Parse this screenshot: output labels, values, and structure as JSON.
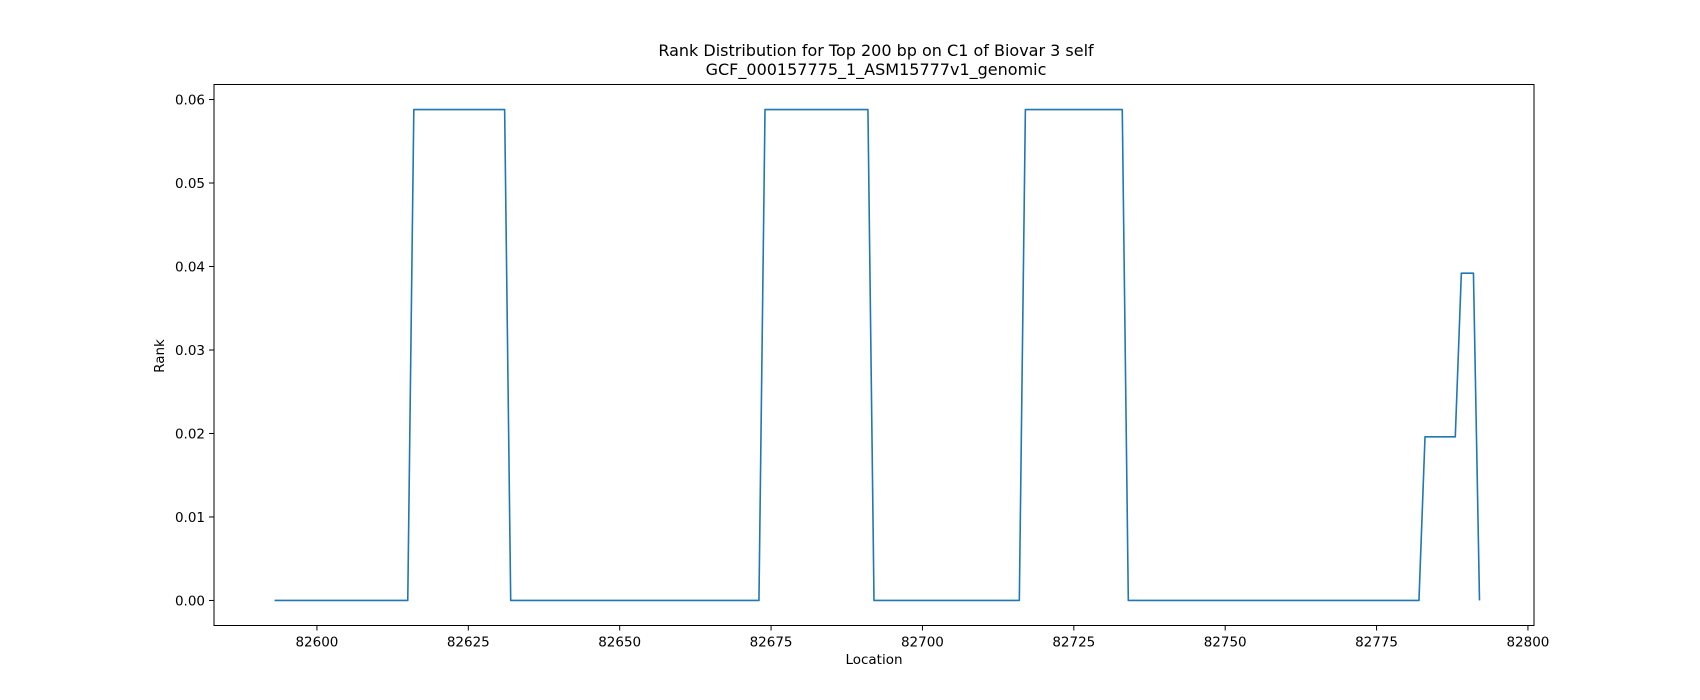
{
  "chart_data": {
    "type": "line",
    "title_line1": "Rank Distribution for Top 200 bp on C1 of Biovar 3 self",
    "title_line2": "GCF_000157775_1_ASM15777v1_genomic",
    "xlabel": "Location",
    "ylabel": "Rank",
    "xlim": [
      82583,
      82801
    ],
    "ylim": [
      -0.003,
      0.0618
    ],
    "x_ticks": [
      82600,
      82625,
      82650,
      82675,
      82700,
      82725,
      82750,
      82775,
      82800
    ],
    "x_tick_labels": [
      "82600",
      "82625",
      "82650",
      "82675",
      "82700",
      "82725",
      "82750",
      "82775",
      "82800"
    ],
    "y_ticks": [
      0.0,
      0.01,
      0.02,
      0.03,
      0.04,
      0.05,
      0.06
    ],
    "y_tick_labels": [
      "0.00",
      "0.01",
      "0.02",
      "0.03",
      "0.04",
      "0.05",
      "0.06"
    ],
    "grid": false,
    "line_color": "#1f77b4",
    "series": [
      {
        "x": [
          82593,
          82615,
          82616,
          82631,
          82632,
          82673,
          82674,
          82691,
          82692,
          82716,
          82717,
          82733,
          82734,
          82782,
          82783,
          82788,
          82789,
          82791,
          82792
        ],
        "y": [
          0.0,
          0.0,
          0.0588,
          0.0588,
          0.0,
          0.0,
          0.0588,
          0.0588,
          0.0,
          0.0,
          0.0588,
          0.0588,
          0.0,
          0.0,
          0.0196,
          0.0196,
          0.0392,
          0.0392,
          0.0
        ]
      }
    ]
  }
}
